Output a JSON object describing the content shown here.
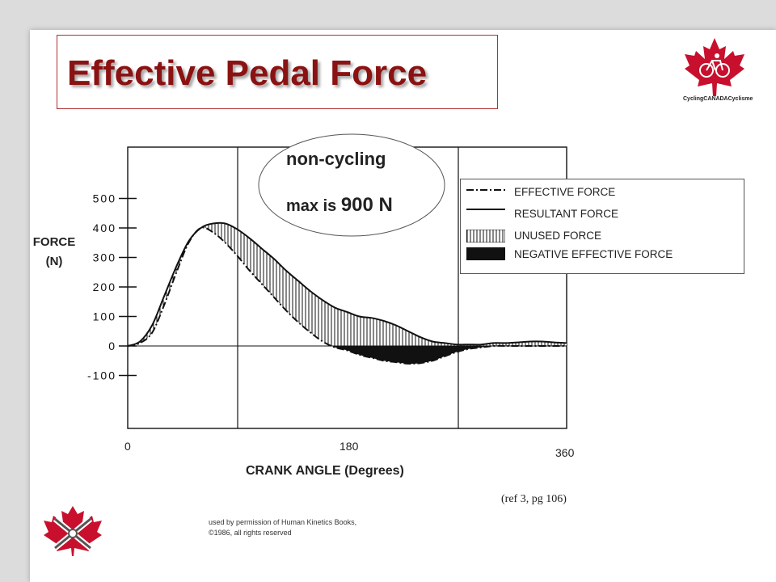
{
  "slide": {
    "title": "Effective Pedal Force",
    "logo_text": "CyclingCANADACyclisme",
    "reference": "(ref 3, pg 106)",
    "permission_line1": "used by permission of Human Kinetics Books,",
    "permission_line2": "©1986, all rights reserved",
    "note_line1": "non-cycling",
    "note_line2_prefix": "max is",
    "note_line2_value": "900 N"
  },
  "colors": {
    "title": "#8b1212",
    "accent": "#c8102e",
    "ink": "#111111"
  },
  "chart_data": {
    "type": "line",
    "ylabel_line1": "FORCE",
    "ylabel_line2": "(N)",
    "xlabel": "CRANK ANGLE (Degrees)",
    "x_ticks": [
      "0",
      "180",
      "360"
    ],
    "y_ticks": [
      "500",
      "400",
      "300",
      "200",
      "100",
      "0",
      "-100"
    ],
    "xlim": [
      0,
      360
    ],
    "ylim": [
      -280,
      690
    ],
    "legend_position": "top-right",
    "legend": [
      "EFFECTIVE FORCE",
      "RESULTANT FORCE",
      "UNUSED FORCE",
      "NEGATIVE EFFECTIVE FORCE"
    ],
    "x": [
      0,
      10,
      20,
      30,
      40,
      50,
      60,
      70,
      80,
      90,
      100,
      110,
      120,
      130,
      140,
      150,
      160,
      170,
      180,
      190,
      200,
      210,
      220,
      230,
      240,
      250,
      260,
      270,
      280,
      290,
      300,
      310,
      320,
      330,
      340,
      350,
      360
    ],
    "series": [
      {
        "name": "RESULTANT FORCE",
        "values": [
          0,
          15,
          70,
          170,
          270,
          355,
          400,
          415,
          415,
          395,
          365,
          330,
          295,
          255,
          220,
          185,
          155,
          130,
          115,
          100,
          95,
          85,
          70,
          50,
          30,
          15,
          10,
          5,
          5,
          5,
          10,
          10,
          12,
          15,
          15,
          12,
          10
        ]
      },
      {
        "name": "EFFECTIVE FORCE",
        "values": [
          0,
          10,
          45,
          140,
          250,
          350,
          400,
          385,
          350,
          305,
          255,
          210,
          165,
          120,
          80,
          45,
          15,
          -5,
          -15,
          -30,
          -40,
          -50,
          -55,
          -60,
          -58,
          -50,
          -35,
          -20,
          -10,
          -5,
          0,
          0,
          0,
          0,
          0,
          0,
          0
        ]
      }
    ]
  }
}
